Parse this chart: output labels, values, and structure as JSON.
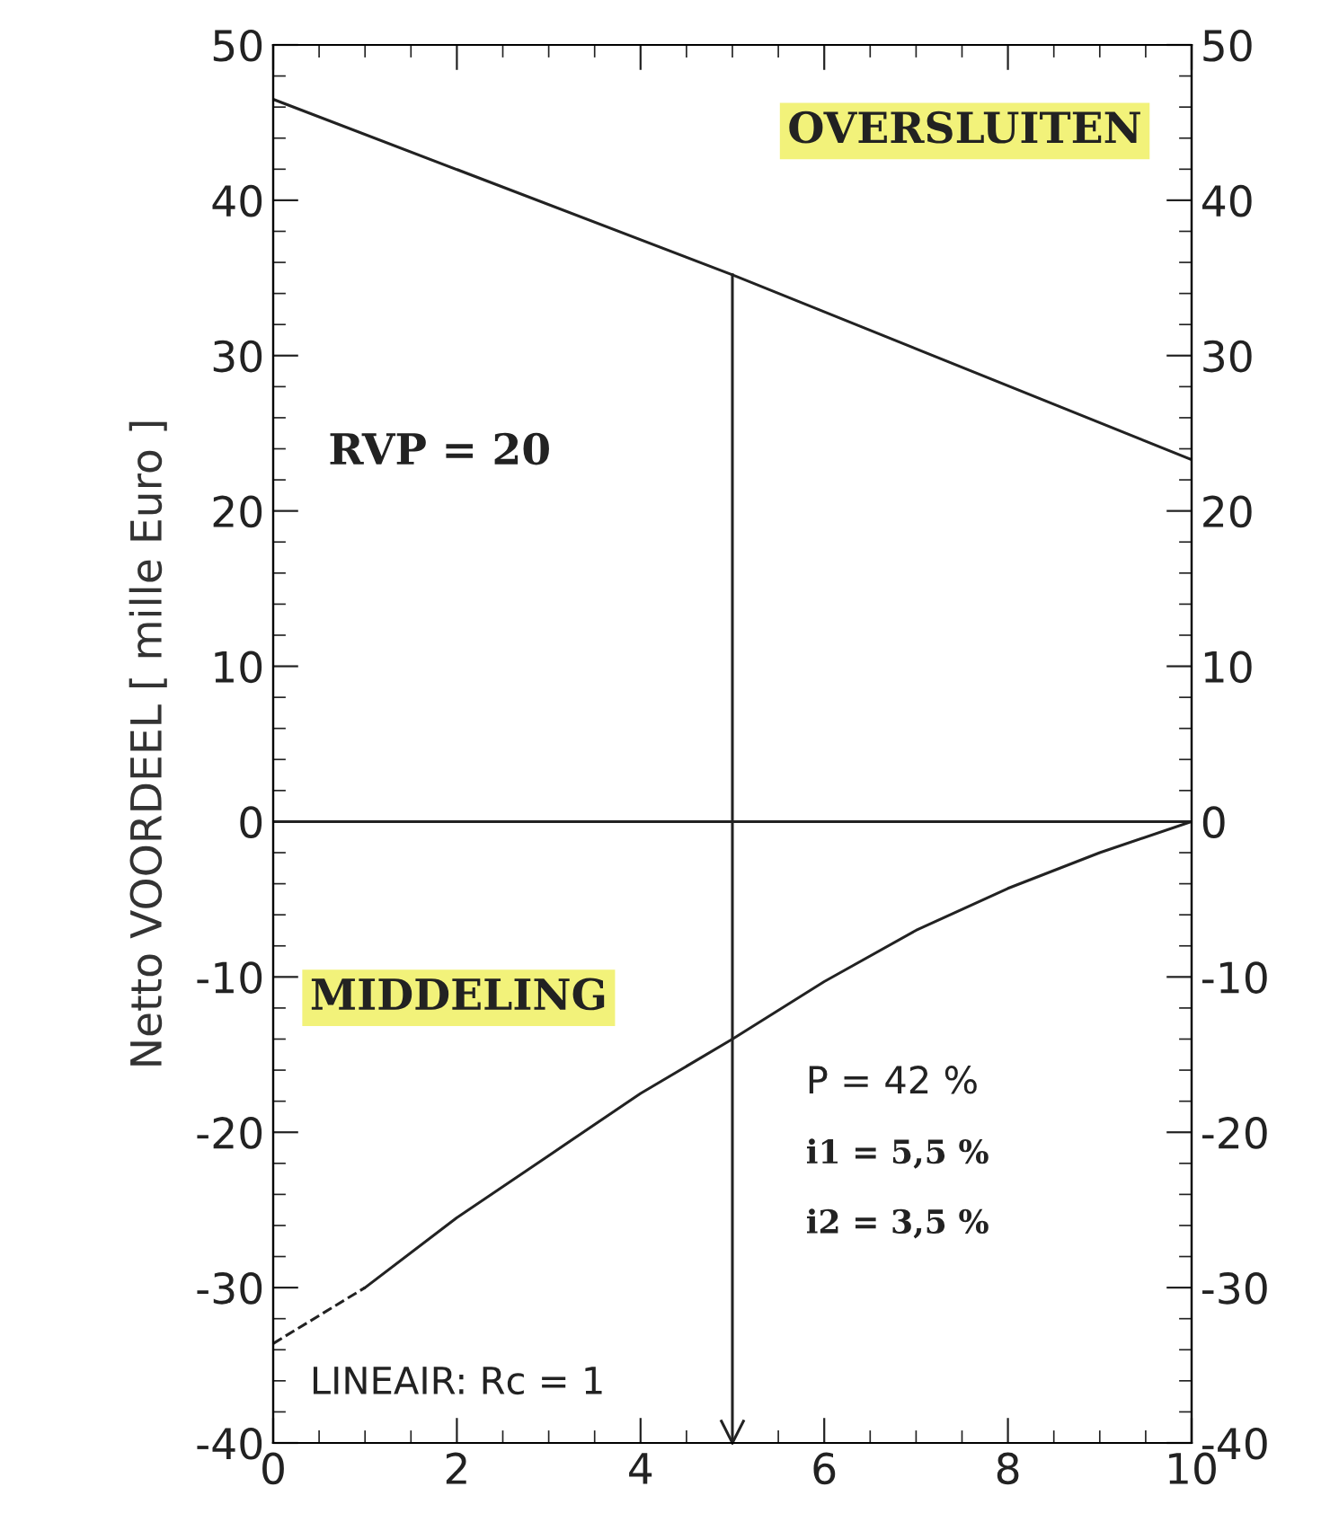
{
  "chart_data": {
    "type": "line",
    "ylabel": "Netto VOORDEEL [ mille Euro ]",
    "xlim": [
      0,
      10
    ],
    "xticks": [
      0,
      2,
      4,
      6,
      8,
      10
    ],
    "ylim": [
      -40,
      50
    ],
    "yticks": [
      -40,
      -30,
      -20,
      -10,
      0,
      10,
      20,
      30,
      40,
      50
    ],
    "y2lim": [
      -40,
      50
    ],
    "y2ticks": [
      -40,
      -30,
      -20,
      -10,
      0,
      10,
      20,
      30,
      40,
      50
    ],
    "grid": false,
    "legend": false,
    "marker": "none",
    "series": [
      {
        "color": "#222222",
        "x": [
          0,
          5,
          10
        ],
        "values": [
          46.5,
          35.2,
          23.3
        ],
        "line_style": "solid"
      },
      {
        "color": "#222222",
        "x": [
          0,
          1
        ],
        "values": [
          -33.6,
          -30
        ],
        "line_style": "dashed"
      },
      {
        "color": "#222222",
        "x": [
          1,
          2,
          3,
          4,
          5,
          6,
          7,
          8,
          9,
          10
        ],
        "values": [
          -30,
          -25.5,
          -21.5,
          -17.5,
          -14,
          -10.3,
          -7,
          -4.3,
          -2,
          0
        ],
        "line_style": "solid"
      },
      {
        "color": "#222222",
        "x": [
          5,
          5
        ],
        "values": [
          35.2,
          -40
        ],
        "line_style": "solid"
      }
    ],
    "ref_lines": [
      {
        "axis": "y",
        "value": 0,
        "color": "#222222"
      }
    ],
    "annotations": [
      "OVERSLUITEN",
      "RVP = 20",
      "MIDDELING",
      "P = 42 %",
      "i1 = 5,5 %",
      "i2 = 3,5 %",
      "LINEAIR: Rc = 1"
    ]
  }
}
